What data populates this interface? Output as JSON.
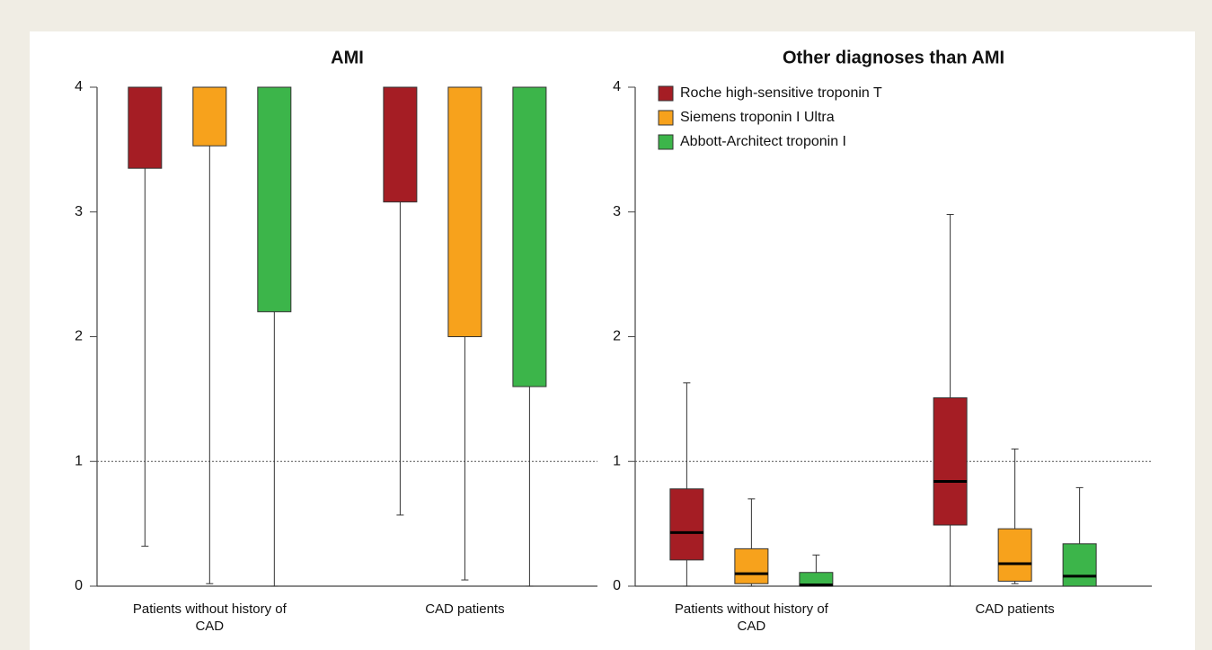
{
  "chart_data": [
    {
      "type": "box",
      "title": "AMI",
      "categories": [
        "Patients without history of CAD",
        "CAD patients"
      ],
      "ylim": [
        0,
        4
      ],
      "yticks": [
        0,
        1,
        2,
        3,
        4
      ],
      "reference_line": 1,
      "grid": false,
      "series": [
        {
          "color": "#a51d24",
          "boxes": [
            {
              "min": 0.32,
              "q1": 3.35,
              "median": null,
              "q3": 4,
              "max": 4
            },
            {
              "min": 0.57,
              "q1": 3.08,
              "median": null,
              "q3": 4,
              "max": 4
            }
          ]
        },
        {
          "color": "#f7a21c",
          "boxes": [
            {
              "min": 0.02,
              "q1": 3.53,
              "median": null,
              "q3": 4,
              "max": 4
            },
            {
              "min": 0.05,
              "q1": 2.0,
              "median": null,
              "q3": 4,
              "max": 4
            }
          ]
        },
        {
          "color": "#3cb54a",
          "boxes": [
            {
              "min": 0,
              "q1": 2.2,
              "median": null,
              "q3": 4,
              "max": 4
            },
            {
              "min": 0,
              "q1": 1.6,
              "median": null,
              "q3": 4,
              "max": 4
            }
          ]
        }
      ]
    },
    {
      "type": "box",
      "title": "Other diagnoses than AMI",
      "categories": [
        "Patients without history of CAD",
        "CAD patients"
      ],
      "ylim": [
        0,
        4
      ],
      "yticks": [
        0,
        1,
        2,
        3,
        4
      ],
      "reference_line": 1,
      "grid": false,
      "legend": "upper left",
      "series": [
        {
          "name": "Roche high-sensitive troponin T",
          "color": "#a51d24",
          "boxes": [
            {
              "min": 0,
              "q1": 0.21,
              "median": 0.43,
              "q3": 0.78,
              "max": 1.63
            },
            {
              "min": 0,
              "q1": 0.49,
              "median": 0.84,
              "q3": 1.51,
              "max": 2.98
            }
          ]
        },
        {
          "name": "Siemens troponin I Ultra",
          "color": "#f7a21c",
          "boxes": [
            {
              "min": 0,
              "q1": 0.02,
              "median": 0.1,
              "q3": 0.3,
              "max": 0.7
            },
            {
              "min": 0.02,
              "q1": 0.04,
              "median": 0.18,
              "q3": 0.46,
              "max": 1.1
            }
          ]
        },
        {
          "name": "Abbott-Architect troponin I",
          "color": "#3cb54a",
          "boxes": [
            {
              "min": 0,
              "q1": 0,
              "median": 0.01,
              "q3": 0.11,
              "max": 0.25
            },
            {
              "min": 0,
              "q1": 0,
              "median": 0.08,
              "q3": 0.34,
              "max": 0.79
            }
          ]
        }
      ]
    }
  ]
}
